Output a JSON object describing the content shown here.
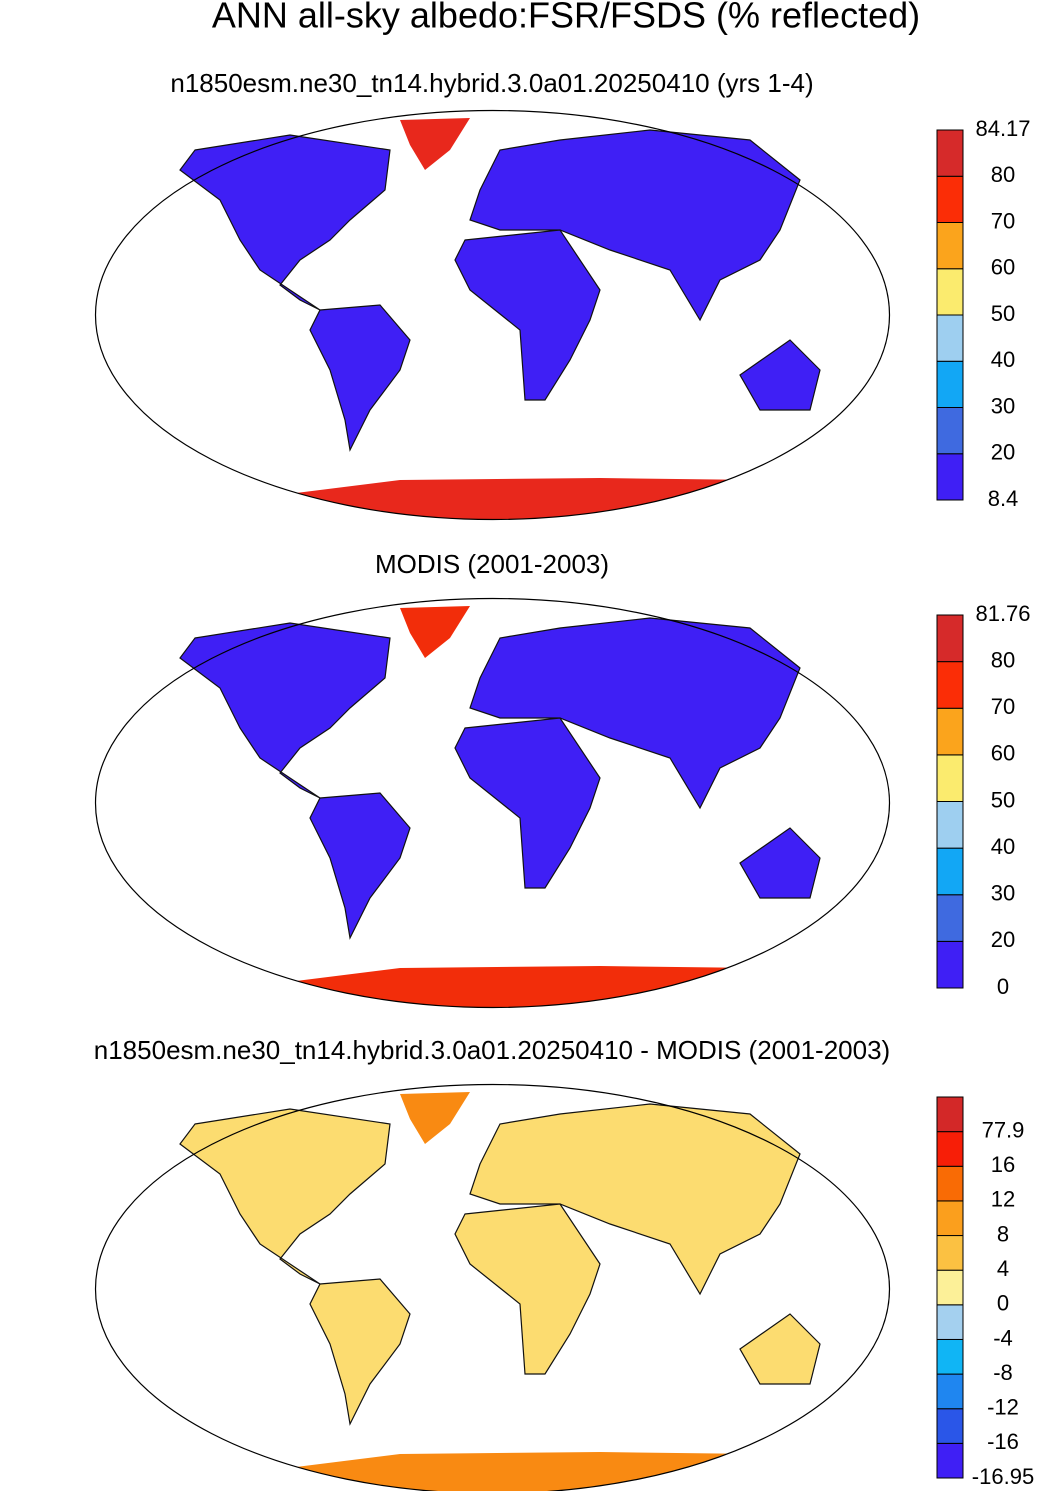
{
  "title": "ANN all-sky albedo:FSR/FSDS (% reflected)",
  "panels": [
    {
      "subtitle": "n1850esm.ne30_tn14.hybrid.3.0a01.20250410 (yrs 1-4)",
      "colorbar": {
        "labels": [
          8.4,
          20,
          30,
          40,
          50,
          60,
          70,
          80,
          84.17
        ],
        "colors": [
          "#3f1ff5",
          "#3f6ae0",
          "#12a7f5",
          "#9ecff0",
          "#fbeb6e",
          "#fba41c",
          "#fb2d06",
          "#d62a2a"
        ]
      }
    },
    {
      "subtitle": "MODIS (2001-2003)",
      "colorbar": {
        "labels": [
          0,
          20,
          30,
          40,
          50,
          60,
          70,
          80,
          81.76
        ],
        "colors": [
          "#3f1ff5",
          "#3f6ae0",
          "#12a7f5",
          "#9ecff0",
          "#fbeb6e",
          "#fba41c",
          "#fb2d06",
          "#d62a2a"
        ]
      }
    },
    {
      "subtitle": "n1850esm.ne30_tn14.hybrid.3.0a01.20250410 - MODIS (2001-2003)",
      "colorbar": {
        "labels": [
          -16.95,
          -16,
          -12,
          -8,
          -4,
          0,
          4,
          8,
          12,
          16,
          77.9
        ],
        "colors": [
          "#3f1ff5",
          "#2a56e8",
          "#1f86f0",
          "#10b5f5",
          "#a4d0ef",
          "#fcf098",
          "#fbc142",
          "#fb9f1d",
          "#f96b05",
          "#f71e07",
          "#d32828"
        ]
      }
    }
  ]
}
